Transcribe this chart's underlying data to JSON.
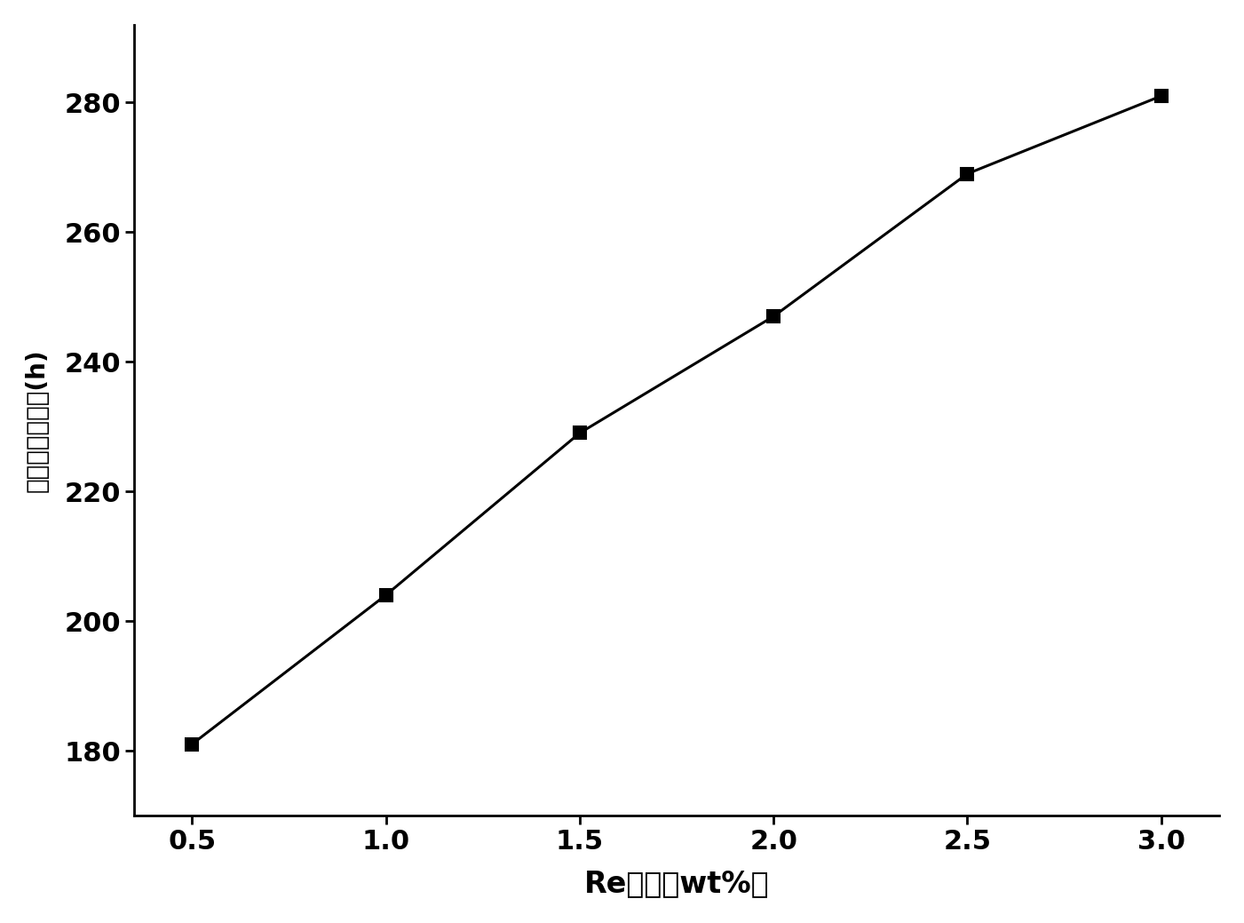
{
  "x": [
    0.5,
    1.0,
    1.5,
    2.0,
    2.5,
    3.0
  ],
  "y": [
    181,
    204,
    229,
    247,
    269,
    281
  ],
  "xlabel": "Re含量（wt%）",
  "ylabel": "高温持久寿命／(h)",
  "line_color": "#000000",
  "marker": "s",
  "marker_color": "#000000",
  "marker_size": 10,
  "linewidth": 2.2,
  "xlim": [
    0.35,
    3.15
  ],
  "ylim": [
    170,
    292
  ],
  "xticks": [
    0.5,
    1.0,
    1.5,
    2.0,
    2.5,
    3.0
  ],
  "yticks": [
    180,
    200,
    220,
    240,
    260,
    280
  ],
  "xlabel_fontsize": 24,
  "ylabel_fontsize": 20,
  "tick_fontsize": 22,
  "background_color": "#ffffff",
  "spine_linewidth": 2.0
}
